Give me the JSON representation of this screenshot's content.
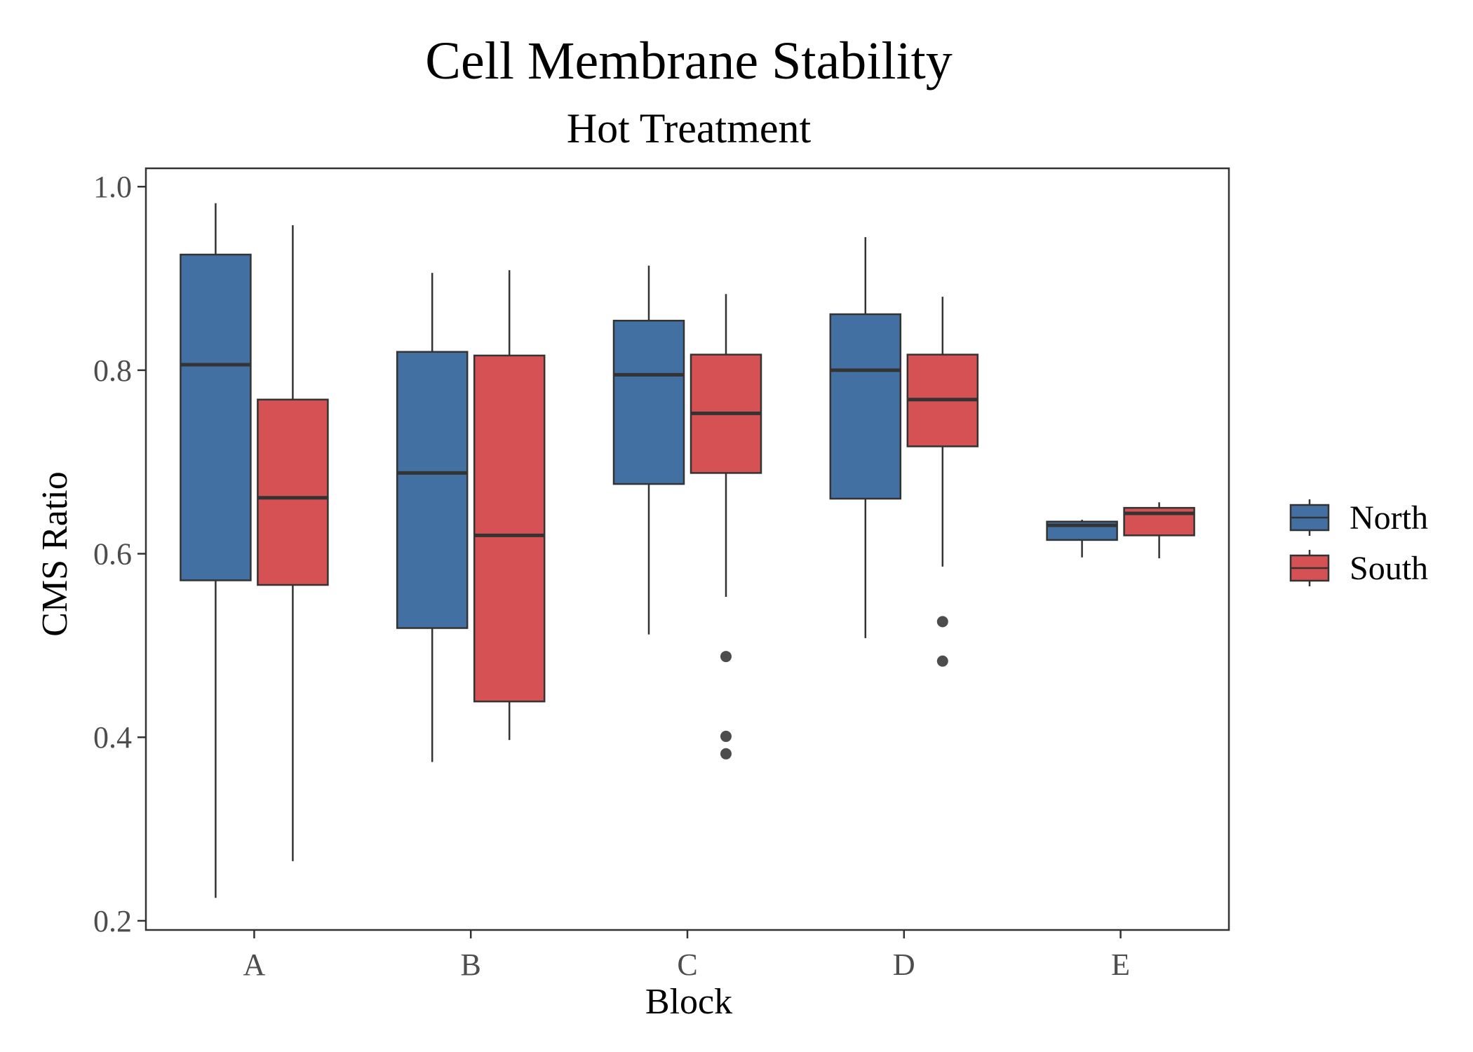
{
  "chart_data": {
    "type": "boxplot",
    "title": "Cell Membrane Stability",
    "subtitle": "Hot Treatment",
    "xlabel": "Block",
    "ylabel": "CMS Ratio",
    "categories": [
      "A",
      "B",
      "C",
      "D",
      "E"
    ],
    "ylim": [
      0.19,
      1.02
    ],
    "yticks": [
      0.2,
      0.4,
      0.6,
      0.8,
      1.0
    ],
    "ytick_labels": [
      "0.2",
      "0.4",
      "0.6",
      "0.8",
      "1.0"
    ],
    "grid": false,
    "legend": {
      "placement": "right",
      "entries": [
        "North",
        "South"
      ]
    },
    "series": [
      {
        "name": "North",
        "color": "#4270a3",
        "boxes": [
          {
            "category": "A",
            "whisker_low": 0.225,
            "q1": 0.571,
            "median": 0.806,
            "q3": 0.926,
            "whisker_high": 0.982,
            "outliers": []
          },
          {
            "category": "B",
            "whisker_low": 0.373,
            "q1": 0.519,
            "median": 0.688,
            "q3": 0.82,
            "whisker_high": 0.906,
            "outliers": []
          },
          {
            "category": "C",
            "whisker_low": 0.512,
            "q1": 0.676,
            "median": 0.795,
            "q3": 0.854,
            "whisker_high": 0.914,
            "outliers": []
          },
          {
            "category": "D",
            "whisker_low": 0.508,
            "q1": 0.66,
            "median": 0.8,
            "q3": 0.861,
            "whisker_high": 0.945,
            "outliers": []
          },
          {
            "category": "E",
            "whisker_low": 0.596,
            "q1": 0.615,
            "median": 0.631,
            "q3": 0.635,
            "whisker_high": 0.637,
            "outliers": []
          }
        ]
      },
      {
        "name": "South",
        "color": "#d65153",
        "boxes": [
          {
            "category": "A",
            "whisker_low": 0.265,
            "q1": 0.566,
            "median": 0.661,
            "q3": 0.768,
            "whisker_high": 0.958,
            "outliers": []
          },
          {
            "category": "B",
            "whisker_low": 0.397,
            "q1": 0.439,
            "median": 0.62,
            "q3": 0.816,
            "whisker_high": 0.909,
            "outliers": []
          },
          {
            "category": "C",
            "whisker_low": 0.553,
            "q1": 0.688,
            "median": 0.753,
            "q3": 0.817,
            "whisker_high": 0.883,
            "outliers": [
              0.488,
              0.401,
              0.382
            ]
          },
          {
            "category": "D",
            "whisker_low": 0.586,
            "q1": 0.717,
            "median": 0.768,
            "q3": 0.817,
            "whisker_high": 0.88,
            "outliers": [
              0.526,
              0.483
            ]
          },
          {
            "category": "E",
            "whisker_low": 0.595,
            "q1": 0.62,
            "median": 0.644,
            "q3": 0.65,
            "whisker_high": 0.656,
            "outliers": []
          }
        ]
      }
    ]
  }
}
